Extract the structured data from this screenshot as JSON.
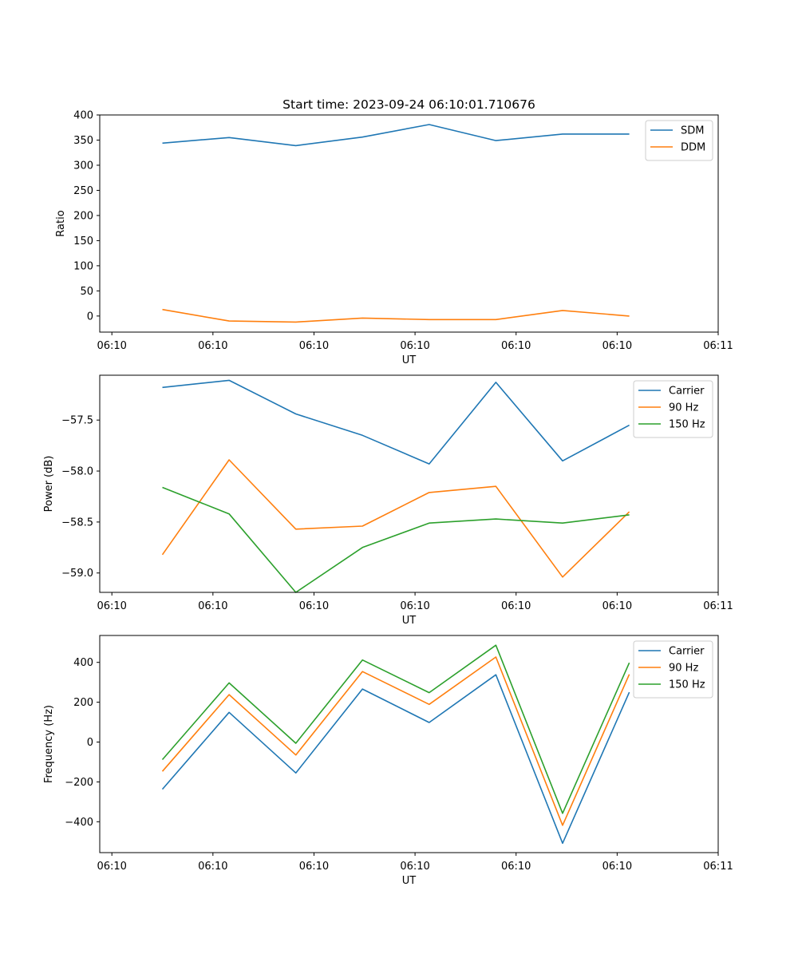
{
  "figure_title": "Start time: 2023-09-24 06:10:01.710676",
  "chart_data": [
    {
      "type": "line",
      "xlabel": "UT",
      "ylabel": "Ratio",
      "x_tick_labels": [
        "06:10",
        "06:10",
        "06:10",
        "06:10",
        "06:10",
        "06:10",
        "06:11"
      ],
      "x_ticks": [
        0,
        1,
        2,
        3,
        4,
        5,
        6
      ],
      "xlim": [
        -0.12,
        6.0
      ],
      "x": [
        0.5,
        1.16,
        1.82,
        2.48,
        3.14,
        3.8,
        4.46,
        5.12
      ],
      "ylim": [
        -32,
        400
      ],
      "y_ticks": [
        0,
        50,
        100,
        150,
        200,
        250,
        300,
        350,
        400
      ],
      "legend": "top-right",
      "series": [
        {
          "name": "SDM",
          "color": "#1f77b4",
          "values": [
            344,
            355,
            339,
            356,
            381,
            349,
            362,
            362
          ]
        },
        {
          "name": "DDM",
          "color": "#ff7f0e",
          "values": [
            13,
            -10,
            -12,
            -4,
            -7,
            -7,
            11,
            0
          ]
        }
      ]
    },
    {
      "type": "line",
      "xlabel": "UT",
      "ylabel": "Power (dB)",
      "x_tick_labels": [
        "06:10",
        "06:10",
        "06:10",
        "06:10",
        "06:10",
        "06:10",
        "06:11"
      ],
      "x_ticks": [
        0,
        1,
        2,
        3,
        4,
        5,
        6
      ],
      "xlim": [
        -0.12,
        6.0
      ],
      "x": [
        0.5,
        1.16,
        1.82,
        2.48,
        3.14,
        3.8,
        4.46,
        5.12
      ],
      "ylim": [
        -59.19,
        -57.06
      ],
      "y_ticks": [
        -59.0,
        -58.5,
        -58.0,
        -57.5
      ],
      "y_tick_labels": [
        "−59.0",
        "−58.5",
        "−58.0",
        "−57.5"
      ],
      "legend": "top-right",
      "series": [
        {
          "name": "Carrier",
          "color": "#1f77b4",
          "values": [
            -57.18,
            -57.11,
            -57.44,
            -57.65,
            -57.93,
            -57.13,
            -57.9,
            -57.55
          ]
        },
        {
          "name": "90 Hz",
          "color": "#ff7f0e",
          "values": [
            -58.82,
            -57.89,
            -58.57,
            -58.54,
            -58.21,
            -58.15,
            -59.04,
            -58.4
          ]
        },
        {
          "name": "150 Hz",
          "color": "#2ca02c",
          "values": [
            -58.16,
            -58.42,
            -59.19,
            -58.75,
            -58.51,
            -58.47,
            -58.51,
            -58.43
          ]
        }
      ]
    },
    {
      "type": "line",
      "xlabel": "UT",
      "ylabel": "Frequency (Hz)",
      "x_tick_labels": [
        "06:10",
        "06:10",
        "06:10",
        "06:10",
        "06:10",
        "06:10",
        "06:11"
      ],
      "x_ticks": [
        0,
        1,
        2,
        3,
        4,
        5,
        6
      ],
      "xlim": [
        -0.12,
        6.0
      ],
      "x": [
        0.5,
        1.16,
        1.82,
        2.48,
        3.14,
        3.8,
        4.46,
        5.12
      ],
      "ylim": [
        -555,
        535
      ],
      "y_ticks": [
        -400,
        -200,
        0,
        200,
        400
      ],
      "y_tick_labels": [
        "−400",
        "−200",
        "0",
        "200",
        "400"
      ],
      "legend": "top-right",
      "series": [
        {
          "name": "Carrier",
          "color": "#1f77b4",
          "values": [
            -237,
            149,
            -155,
            266,
            98,
            338,
            -508,
            250
          ]
        },
        {
          "name": "90 Hz",
          "color": "#ff7f0e",
          "values": [
            -147,
            238,
            -65,
            354,
            189,
            427,
            -418,
            340
          ]
        },
        {
          "name": "150 Hz",
          "color": "#2ca02c",
          "values": [
            -88,
            297,
            -6,
            412,
            248,
            486,
            -358,
            398
          ]
        }
      ]
    }
  ]
}
